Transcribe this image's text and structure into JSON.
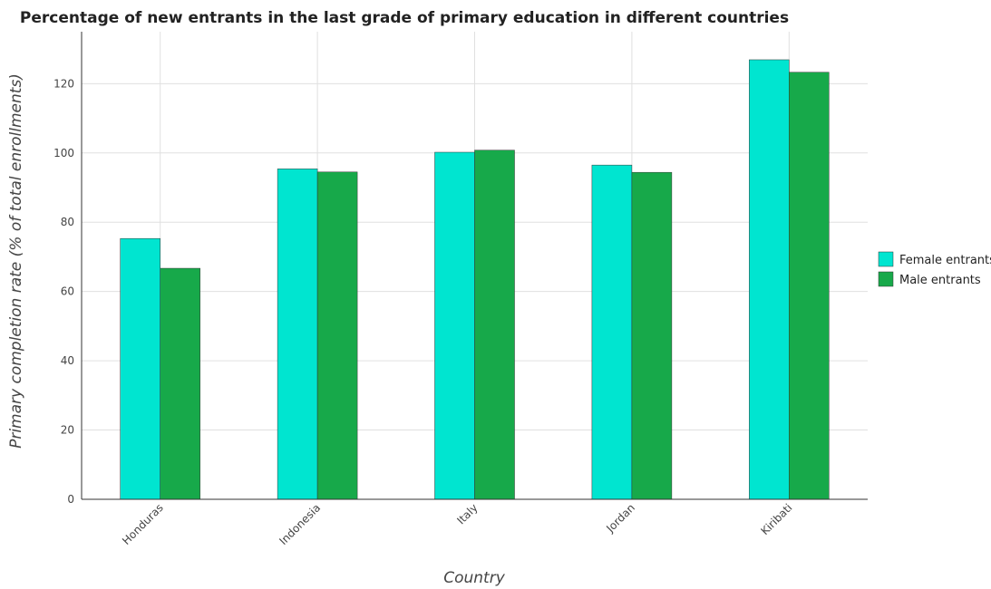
{
  "chart_data": {
    "type": "bar",
    "title": "Percentage of new entrants in the last grade of primary education in different countries",
    "xlabel": "Country",
    "ylabel": "Primary completion rate (% of total enrollments)",
    "categories": [
      "Honduras",
      "Indonesia",
      "Italy",
      "Jordan",
      "Kiribati"
    ],
    "ylim": [
      0,
      135
    ],
    "yticks": [
      0,
      20,
      40,
      60,
      80,
      100,
      120
    ],
    "grid": true,
    "legend_position": "right",
    "series": [
      {
        "name": "Female entrants",
        "color": "#00e5d0",
        "values": [
          75.3,
          95.4,
          100.2,
          96.5,
          126.9
        ]
      },
      {
        "name": "Male entrants",
        "color": "#17a94a",
        "values": [
          66.7,
          94.5,
          100.8,
          94.4,
          123.3
        ]
      }
    ]
  }
}
